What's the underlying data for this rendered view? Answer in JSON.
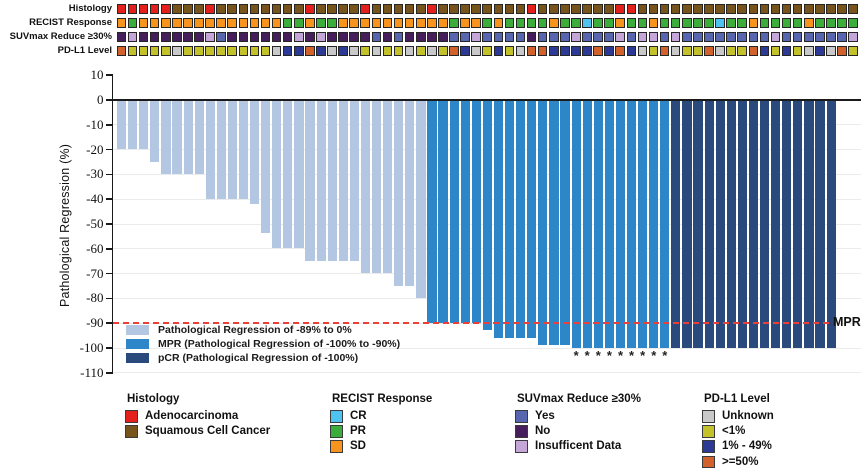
{
  "figure": {
    "y_axis_title": "Pathological Regression (%)",
    "mpr_line_label": "MPR",
    "asterisk_glyph": "*"
  },
  "palette": {
    "A": "#e3201b",
    "S": "#77541c",
    "C": "#4fc3f0",
    "P": "#3cad3a",
    "D": "#f7941d",
    "Y": "#5766ae",
    "N": "#461e5c",
    "I": "#c4a6d9",
    "U": "#c9c9c9",
    "L": "#c3c22a",
    "M": "#2c3a96",
    "H": "#d2622c"
  },
  "tracks": [
    {
      "id": "histology",
      "label": "Histology",
      "cells": "AAAAASSSASSSSSSSSASSSSASSSSSASSSSSSSSASSSSSSSAASSSSSSSSSSSSSSSSSSSS"
    },
    {
      "id": "recist-response",
      "label": "RECIST Response",
      "cells": "DPDDDDDDDDDDDDDPPDPPDDDDDDDDDDPDDPDPPPPDPPCPPDPPDPPPPPCPPDPPPPDPPPP"
    },
    {
      "id": "suvmax-reduce",
      "label": "SUVmax Reduce ≥30%",
      "cells": "NINNNNNNIYNNNNNNININNNNYNYNNNNYYIYYYYNYYYIYYYIYIIYIYYYYYYYYIYYYYYYI"
    },
    {
      "id": "pdl1-level",
      "label": "PD-L1 Level",
      "cells": "HLLLLULLLLLLLLUMMHMUMULULLULULHMULMLUHHMMMMHMHMULHULLHULLHMLMLUMUHL"
    }
  ],
  "chart_data": {
    "type": "bar",
    "title": "",
    "xlabel": "",
    "ylabel": "Pathological Regression (%)",
    "ylim": [
      -110,
      10
    ],
    "yticks": [
      10,
      0,
      -10,
      -20,
      -30,
      -40,
      -50,
      -60,
      -70,
      -80,
      -90,
      -100,
      -110
    ],
    "grid": "horizontal-light",
    "values": [
      -20,
      -20,
      -20,
      -25,
      -30,
      -30,
      -30,
      -30,
      -40,
      -40,
      -40,
      -40,
      -42,
      -54,
      -60,
      -60,
      -60,
      -65,
      -65,
      -65,
      -65,
      -65,
      -70,
      -70,
      -70,
      -75,
      -75,
      -80,
      -90,
      -90,
      -90,
      -90,
      -90,
      -93,
      -96,
      -96,
      -96,
      -96,
      -99,
      -99,
      -99,
      -100,
      -100,
      -100,
      -100,
      -100,
      -100,
      -100,
      -100,
      -100,
      -100,
      -100,
      -100,
      -100,
      -100,
      -100,
      -100,
      -100,
      -100,
      -100,
      -100,
      -100,
      -100,
      -100,
      -100
    ],
    "groups": [
      {
        "name": "Pathological Regression of -89% to 0%",
        "color": "#b3c6e2",
        "count": 28
      },
      {
        "name": "MPR (Pathological Regression of -100% to -90%)",
        "color": "#2c86c7",
        "count": 22
      },
      {
        "name": "pCR (Pathological Regression of -100%)",
        "color": "#2a4a7d",
        "count": 15
      }
    ],
    "reference_line": {
      "y": -90,
      "style": "dashed",
      "color": "#ec3f38",
      "label": "MPR"
    },
    "asterisk_bar_indexes": [
      42,
      43,
      44,
      45,
      46,
      47,
      48,
      49,
      50
    ],
    "legend_position": "bottom-left-inside"
  },
  "bottom_legend": [
    {
      "title": "Histology",
      "items": [
        {
          "label": "Adenocarcinoma",
          "color": "#e3201b"
        },
        {
          "label": "Squamous Cell Cancer",
          "color": "#77541c"
        }
      ]
    },
    {
      "title": "RECIST Response",
      "items": [
        {
          "label": "CR",
          "color": "#4fc3f0"
        },
        {
          "label": "PR",
          "color": "#3cad3a"
        },
        {
          "label": "SD",
          "color": "#f7941d"
        }
      ]
    },
    {
      "title": "SUVmax Reduce ≥30%",
      "items": [
        {
          "label": "Yes",
          "color": "#5766ae"
        },
        {
          "label": "No",
          "color": "#461e5c"
        },
        {
          "label": "Insufficent Data",
          "color": "#c4a6d9"
        }
      ]
    },
    {
      "title": "PD-L1 Level",
      "items": [
        {
          "label": "Unknown",
          "color": "#c9c9c9"
        },
        {
          "label": "<1%",
          "color": "#c3c22a"
        },
        {
          "label": "1% - 49%",
          "color": "#2c3a96"
        },
        {
          "label": ">=50%",
          "color": "#d2622c"
        }
      ]
    }
  ]
}
